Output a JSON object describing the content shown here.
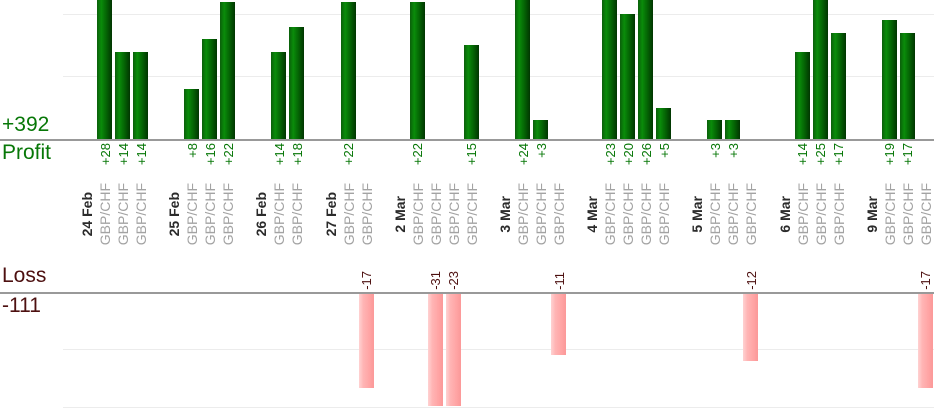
{
  "chart_data": {
    "type": "bar",
    "orientation": "vertical",
    "description_visible_text_only": true,
    "profit": {
      "axis_label": "Profit",
      "total_label": "+392",
      "total": 392
    },
    "loss": {
      "axis_label": "Loss",
      "total_label": "-111",
      "total": -111
    },
    "gridline_interval": 10,
    "legend": "none",
    "groups": [
      {
        "date": "24 Feb",
        "trades": [
          {
            "instrument": "GBP/CHF",
            "value": 28
          },
          {
            "instrument": "GBP/CHF",
            "value": 14
          },
          {
            "instrument": "GBP/CHF",
            "value": 14
          }
        ]
      },
      {
        "date": "25 Feb",
        "trades": [
          {
            "instrument": "GBP/CHF",
            "value": 8
          },
          {
            "instrument": "GBP/CHF",
            "value": 16
          },
          {
            "instrument": "GBP/CHF",
            "value": 22
          }
        ]
      },
      {
        "date": "26 Feb",
        "trades": [
          {
            "instrument": "GBP/CHF",
            "value": 14
          },
          {
            "instrument": "GBP/CHF",
            "value": 18
          }
        ]
      },
      {
        "date": "27 Feb",
        "trades": [
          {
            "instrument": "GBP/CHF",
            "value": 22
          },
          {
            "instrument": "GBP/CHF",
            "value": -17
          }
        ]
      },
      {
        "date": "2 Mar",
        "trades": [
          {
            "instrument": "GBP/CHF",
            "value": 22
          },
          {
            "instrument": "GBP/CHF",
            "value": -31
          },
          {
            "instrument": "GBP/CHF",
            "value": -23
          },
          {
            "instrument": "GBP/CHF",
            "value": 15
          }
        ]
      },
      {
        "date": "3 Mar",
        "trades": [
          {
            "instrument": "GBP/CHF",
            "value": 24
          },
          {
            "instrument": "GBP/CHF",
            "value": 3
          },
          {
            "instrument": "GBP/CHF",
            "value": -11
          }
        ]
      },
      {
        "date": "4 Mar",
        "trades": [
          {
            "instrument": "GBP/CHF",
            "value": 23
          },
          {
            "instrument": "GBP/CHF",
            "value": 20
          },
          {
            "instrument": "GBP/CHF",
            "value": 26
          },
          {
            "instrument": "GBP/CHF",
            "value": 5
          }
        ]
      },
      {
        "date": "5 Mar",
        "trades": [
          {
            "instrument": "GBP/CHF",
            "value": 3
          },
          {
            "instrument": "GBP/CHF",
            "value": 3
          },
          {
            "instrument": "GBP/CHF",
            "value": -12
          }
        ]
      },
      {
        "date": "6 Mar",
        "trades": [
          {
            "instrument": "GBP/CHF",
            "value": 14
          },
          {
            "instrument": "GBP/CHF",
            "value": 25
          },
          {
            "instrument": "GBP/CHF",
            "value": 17
          }
        ]
      },
      {
        "date": "9 Mar",
        "trades": [
          {
            "instrument": "GBP/CHF",
            "value": 19
          },
          {
            "instrument": "GBP/CHF",
            "value": 17
          },
          {
            "instrument": "GBP/CHF",
            "value": -17
          }
        ]
      }
    ],
    "colors": {
      "profit_bar_edge": "#0b5f0b",
      "profit_bar_bright": "#0a8c0a",
      "profit_bar_mid": "#046104",
      "profit_bar_dark": "#013501",
      "loss_bar_light": "#ffd2d2",
      "loss_bar_main": "#ffb4b4",
      "loss_bar_mid": "#ffa4a4",
      "loss_bar_dark": "#fb9898",
      "profit_text": "#077707",
      "loss_text": "#4d1010",
      "loss_heading": "#4d1010",
      "date_text": "#2b2b2b",
      "instrument_text": "#a3a3a3",
      "axis_line": "#999999",
      "gridline": "#ececec"
    }
  }
}
